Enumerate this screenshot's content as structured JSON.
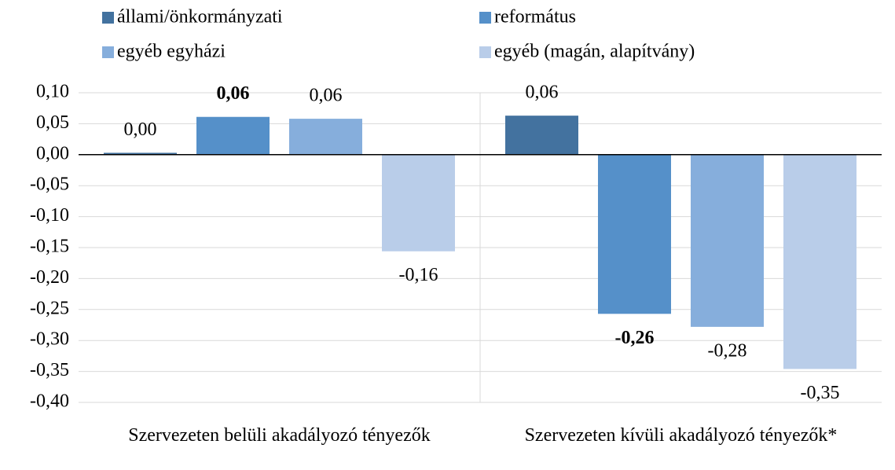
{
  "chart_data": {
    "type": "bar",
    "categories": [
      "Szervezeten belüli akadályozó tényezők",
      "Szervezeten kívüli akadályozó tényezők*"
    ],
    "series": [
      {
        "name": "állami/önkormányzati",
        "color": "#43729f",
        "values": [
          0.003,
          0.063
        ],
        "value_labels": [
          "0,00",
          "0,06"
        ],
        "label_bold": [
          false,
          false
        ]
      },
      {
        "name": "református",
        "color": "#5590c9",
        "values": [
          0.061,
          -0.257
        ],
        "value_labels": [
          "0,06",
          "-0,26"
        ],
        "label_bold": [
          true,
          true
        ]
      },
      {
        "name": "egyéb egyházi",
        "color": "#86aedc",
        "values": [
          0.058,
          -0.278
        ],
        "value_labels": [
          "0,06",
          "-0,28"
        ],
        "label_bold": [
          false,
          false
        ]
      },
      {
        "name": "egyéb (magán, alapítvány)",
        "color": "#b9cde9",
        "values": [
          -0.156,
          -0.346
        ],
        "value_labels": [
          "-0,16",
          "-0,35"
        ],
        "label_bold": [
          false,
          false
        ]
      }
    ],
    "ylim": [
      -0.4,
      0.1
    ],
    "yticks": [
      {
        "value": 0.1,
        "label": "0,10"
      },
      {
        "value": 0.05,
        "label": "0,05"
      },
      {
        "value": 0,
        "label": "0,00"
      },
      {
        "value": -0.05,
        "label": "-0,05"
      },
      {
        "value": -0.1,
        "label": "-0,10"
      },
      {
        "value": -0.15,
        "label": "-0,15"
      },
      {
        "value": -0.2,
        "label": "-0,20"
      },
      {
        "value": -0.25,
        "label": "-0,25"
      },
      {
        "value": -0.3,
        "label": "-0,30"
      },
      {
        "value": -0.35,
        "label": "-0,35"
      },
      {
        "value": -0.4,
        "label": "-0,40"
      }
    ],
    "grid": true
  }
}
